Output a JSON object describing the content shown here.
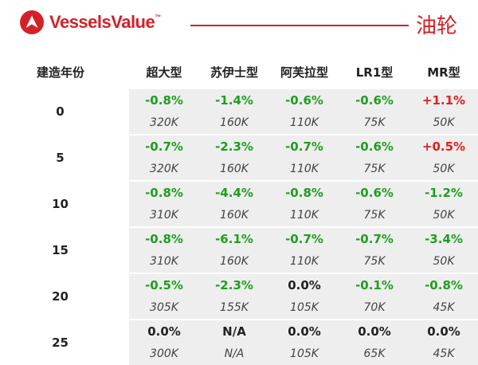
{
  "brand": {
    "name": "VesselsValue",
    "tm": "™",
    "color": "#d42027",
    "icon": "vesselsvalue-logo-icon"
  },
  "page": {
    "title": "油轮"
  },
  "colors": {
    "negative": "#1f9e1f",
    "positive": "#e02020",
    "neutral": "#222222"
  },
  "table": {
    "headers": [
      "建造年份",
      "超大型",
      "苏伊士型",
      "阿芙拉型",
      "LR1型",
      "MR型"
    ],
    "rows": [
      {
        "age": "0",
        "changes": [
          "-0.8%",
          "-1.4%",
          "-0.6%",
          "-0.6%",
          "+1.1%"
        ],
        "tones": [
          "neg",
          "neg",
          "neg",
          "neg",
          "pos"
        ],
        "values": [
          "320K",
          "160K",
          "110K",
          "75K",
          "50K"
        ]
      },
      {
        "age": "5",
        "changes": [
          "-0.7%",
          "-2.3%",
          "-0.7%",
          "-0.6%",
          "+0.5%"
        ],
        "tones": [
          "neg",
          "neg",
          "neg",
          "neg",
          "pos"
        ],
        "values": [
          "320K",
          "160K",
          "110K",
          "75K",
          "50K"
        ]
      },
      {
        "age": "10",
        "changes": [
          "-0.8%",
          "-4.4%",
          "-0.8%",
          "-0.6%",
          "-1.2%"
        ],
        "tones": [
          "neg",
          "neg",
          "neg",
          "neg",
          "neg"
        ],
        "values": [
          "310K",
          "160K",
          "110K",
          "75K",
          "50K"
        ]
      },
      {
        "age": "15",
        "changes": [
          "-0.8%",
          "-6.1%",
          "-0.7%",
          "-0.7%",
          "-3.4%"
        ],
        "tones": [
          "neg",
          "neg",
          "neg",
          "neg",
          "neg"
        ],
        "values": [
          "310K",
          "160K",
          "110K",
          "75K",
          "50K"
        ]
      },
      {
        "age": "20",
        "changes": [
          "-0.5%",
          "-2.3%",
          "0.0%",
          "-0.1%",
          "-0.8%"
        ],
        "tones": [
          "neg",
          "neg",
          "neu",
          "neg",
          "neg"
        ],
        "values": [
          "305K",
          "155K",
          "105K",
          "70K",
          "45K"
        ]
      },
      {
        "age": "25",
        "changes": [
          "0.0%",
          "N/A",
          "0.0%",
          "0.0%",
          "0.0%"
        ],
        "tones": [
          "neu",
          "neu",
          "neu",
          "neu",
          "neu"
        ],
        "values": [
          "300K",
          "N/A",
          "105K",
          "65K",
          "45K"
        ]
      }
    ]
  }
}
